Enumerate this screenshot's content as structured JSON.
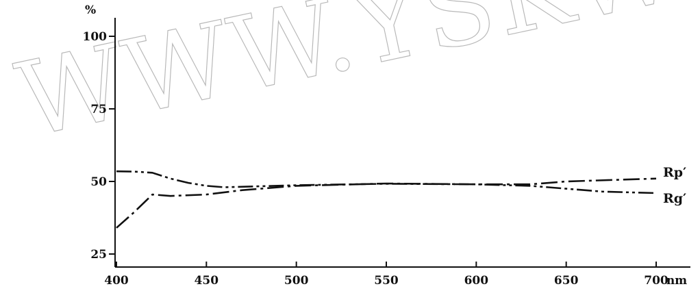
{
  "watermark": "WWW.YSKW.C",
  "chart_data": {
    "type": "line",
    "x_unit": "nm",
    "y_unit": "%",
    "x_ticks": [
      400,
      450,
      500,
      550,
      600,
      650,
      700
    ],
    "y_ticks": [
      25,
      50,
      75,
      100
    ],
    "xlim": [
      400,
      710
    ],
    "ylim": [
      20,
      105
    ],
    "grid": false,
    "legend": "inline labels at right end of lines",
    "series": [
      {
        "name": "Rp′",
        "line_style": "dash-dot",
        "x": [
          400,
          410,
          420,
          430,
          450,
          470,
          500,
          550,
          600,
          630,
          650,
          700
        ],
        "y": [
          34,
          39.5,
          45.5,
          45,
          45.5,
          47,
          48.5,
          49.3,
          49,
          49,
          50,
          51
        ]
      },
      {
        "name": "Rg′",
        "line_style": "dash-dot-dot",
        "x": [
          400,
          410,
          420,
          430,
          440,
          450,
          460,
          500,
          550,
          600,
          630,
          650,
          670,
          700
        ],
        "y": [
          53.5,
          53.4,
          53,
          51,
          49.5,
          48.5,
          48,
          48.7,
          49.2,
          49,
          48.5,
          47.5,
          46.5,
          46
        ]
      }
    ]
  }
}
